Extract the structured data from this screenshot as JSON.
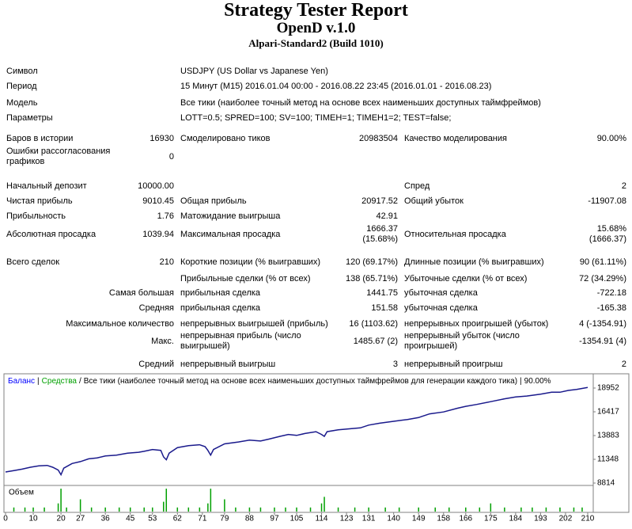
{
  "header": {
    "title": "Strategy Tester Report",
    "subtitle": "OpenD v.1.0",
    "server": "Alpari-Standard2 (Build 1010)"
  },
  "info": [
    {
      "label": "Символ",
      "value": "USDJPY (US Dollar vs Japanese Yen)"
    },
    {
      "label": "Период",
      "value": "15 Минут (M15) 2016.01.04 00:00 - 2016.08.22 23:45 (2016.01.01 - 2016.08.23)"
    },
    {
      "label": "Модель",
      "value": "Все тики (наиболее точный метод на основе всех наименьших доступных таймфреймов)"
    },
    {
      "label": "Параметры",
      "value": "LOTT=0.5; SPRED=100; SV=100; TIMEH=1; TIMEH1=2; TEST=false;"
    }
  ],
  "stats": {
    "rows": [
      [
        "Баров в истории",
        "16930",
        "Смоделировано тиков",
        "20983504",
        "Качество моделирования",
        "90.00%"
      ],
      [
        "Ошибки рассогласования графиков",
        "0",
        null,
        null,
        null,
        null
      ],
      [
        "Начальный депозит",
        "10000.00",
        null,
        null,
        "Спред",
        "2"
      ],
      [
        "Чистая прибыль",
        "9010.45",
        "Общая прибыль",
        "20917.52",
        "Общий убыток",
        "-11907.08"
      ],
      [
        "Прибыльность",
        "1.76",
        "Матожидание выигрыша",
        "42.91",
        null,
        null
      ],
      [
        "Абсолютная просадка",
        "1039.94",
        "Максимальная просадка",
        "1666.37 (15.68%)",
        "Относительная просадка",
        "15.68% (1666.37)"
      ],
      [
        "Всего сделок",
        "210",
        "Короткие позиции (% выигравших)",
        "120 (69.17%)",
        "Длинные позиции (% выигравших)",
        "90 (61.11%)"
      ],
      [
        null,
        null,
        "Прибыльные сделки (% от всех)",
        "138 (65.71%)",
        "Убыточные сделки (% от всех)",
        "72 (34.29%)"
      ],
      [
        null,
        "Самая большая",
        "прибыльная сделка",
        "1441.75",
        "убыточная сделка",
        "-722.18"
      ],
      [
        null,
        "Средняя",
        "прибыльная сделка",
        "151.58",
        "убыточная сделка",
        "-165.38"
      ],
      [
        null,
        "Максимальное количество",
        "непрерывных выигрышей (прибыль)",
        "16 (1103.62)",
        "непрерывных проигрышей (убыток)",
        "4 (-1354.91)"
      ],
      [
        null,
        "Макс.",
        "непрерывная прибыль (число выигрышей)",
        "1485.67 (2)",
        "непрерывный убыток (число проигрышей)",
        "-1354.91 (4)"
      ],
      [
        null,
        "Средний",
        "непрерывный выигрыш",
        "3",
        "непрерывный проигрыш",
        "2"
      ]
    ]
  },
  "chart_data": {
    "type": "line",
    "legend": [
      {
        "text": "Баланс",
        "color": "#0000ff"
      },
      {
        "text": "|"
      },
      {
        "text": "Средства",
        "color": "#00a000"
      },
      {
        "text": "/"
      },
      {
        "text": "Все тики (наиболее точный метод на основе всех наименьших доступных таймфреймов для генерации каждого тика)"
      },
      {
        "text": "|"
      },
      {
        "text": "90.00%"
      }
    ],
    "x": [
      0,
      3,
      6,
      9,
      12,
      15,
      17,
      19,
      20,
      21,
      24,
      27,
      30,
      33,
      36,
      40,
      44,
      48,
      50,
      53,
      56,
      57,
      58,
      59,
      62,
      66,
      70,
      72,
      73,
      74,
      75,
      79,
      84,
      88,
      92,
      95,
      99,
      102,
      105,
      108,
      112,
      114,
      115,
      116,
      120,
      124,
      128,
      131,
      135,
      140,
      145,
      149,
      150,
      153,
      158,
      163,
      166,
      170,
      175,
      180,
      184,
      188,
      193,
      197,
      200,
      203,
      206,
      210
    ],
    "series": [
      {
        "color": "#1a1a8c",
        "values": [
          10000,
          10150,
          10300,
          10500,
          10650,
          10700,
          10500,
          10200,
          9700,
          10400,
          10900,
          11100,
          11400,
          11500,
          11700,
          11800,
          12000,
          12100,
          12200,
          12400,
          12300,
          11600,
          11300,
          12000,
          12600,
          12800,
          12900,
          12700,
          12300,
          11800,
          12400,
          13000,
          13200,
          13400,
          13300,
          13500,
          13800,
          14000,
          13900,
          14100,
          14300,
          14000,
          13800,
          14300,
          14500,
          14600,
          14700,
          15000,
          15200,
          15400,
          15600,
          15800,
          15900,
          16200,
          16400,
          16800,
          17000,
          17200,
          17500,
          17800,
          18000,
          18100,
          18300,
          18500,
          18500,
          18700,
          18800,
          19010
        ]
      }
    ],
    "xlim": [
      0,
      212
    ],
    "ylim": [
      8645,
      20219
    ],
    "yticks": [
      8814,
      11348,
      13883,
      16417,
      18952
    ],
    "xticks": [
      0,
      10,
      20,
      27,
      36,
      45,
      53,
      62,
      71,
      79,
      88,
      97,
      105,
      114,
      123,
      131,
      140,
      149,
      158,
      166,
      175,
      184,
      193,
      202,
      210
    ],
    "volume": {
      "label": "Объем",
      "color": "#00a000",
      "ylim": [
        0,
        3
      ],
      "x": [
        3,
        7,
        10,
        14,
        19,
        20,
        22,
        27,
        31,
        36,
        41,
        45,
        50,
        53,
        57,
        58,
        62,
        66,
        70,
        73,
        74,
        79,
        83,
        88,
        92,
        97,
        101,
        105,
        110,
        114,
        115,
        120,
        126,
        131,
        137,
        142,
        149,
        155,
        160,
        166,
        171,
        175,
        180,
        186,
        190,
        195,
        200,
        205,
        208
      ],
      "values": [
        0.5,
        0.5,
        0.5,
        0.5,
        1.0,
        2.8,
        0.5,
        1.5,
        0.5,
        0.5,
        0.5,
        0.5,
        0.5,
        0.5,
        1.2,
        2.8,
        0.5,
        0.5,
        0.5,
        1.0,
        2.8,
        1.5,
        0.5,
        0.5,
        0.5,
        0.5,
        0.5,
        0.5,
        0.5,
        1.0,
        1.8,
        0.5,
        0.5,
        0.5,
        0.5,
        0.5,
        0.5,
        0.5,
        0.5,
        0.5,
        0.5,
        1.0,
        0.5,
        0.5,
        0.5,
        0.5,
        0.5,
        0.5,
        0.5
      ]
    }
  }
}
